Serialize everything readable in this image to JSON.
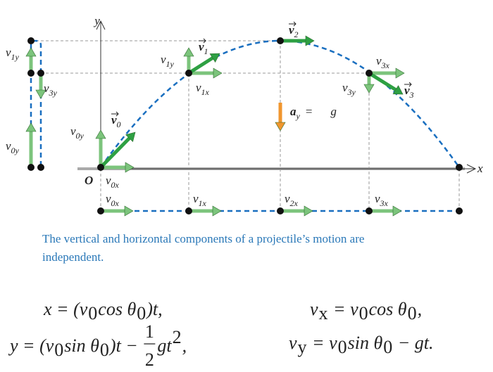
{
  "axes": {
    "y": "y",
    "x": "x",
    "origin": "O"
  },
  "labels": [
    {
      "symbol": "v",
      "sub": "0y"
    },
    {
      "symbol": "v",
      "sub": "1y"
    },
    {
      "symbol": "v",
      "sub": "3y"
    },
    {
      "symbol": "v",
      "sub": "0"
    },
    {
      "symbol": "v",
      "sub": "0y"
    },
    {
      "symbol": "v",
      "sub": "0x"
    },
    {
      "symbol": "v",
      "sub": "1y"
    },
    {
      "symbol": "v",
      "sub": "1"
    },
    {
      "symbol": "v",
      "sub": "1x"
    },
    {
      "symbol": "v",
      "sub": "2"
    },
    {
      "symbol": "v",
      "sub": "3x"
    },
    {
      "symbol": "v",
      "sub": "3y"
    },
    {
      "symbol": "v",
      "sub": "3"
    },
    {
      "symbol": "v",
      "sub": "0x"
    },
    {
      "symbol": "v",
      "sub": "1x"
    },
    {
      "symbol": "v",
      "sub": "2x"
    },
    {
      "symbol": "v",
      "sub": "3x"
    }
  ],
  "acceleration": {
    "symbol": "a",
    "sub": "y",
    "equals": "=",
    "value": "g"
  },
  "caption": [
    "The vertical and horizontal components of a projectile’s motion are",
    "independent."
  ],
  "equations": [
    [
      {
        "text": "x = (v"
      },
      {
        "sub": "0"
      },
      {
        "text": "cos θ"
      },
      {
        "sub": "0"
      },
      {
        "text": ")t,"
      }
    ],
    [
      {
        "text": "y = (v"
      },
      {
        "sub": "0"
      },
      {
        "text": "sin θ"
      },
      {
        "sub": "0"
      },
      {
        "text": ")t − "
      },
      {
        "num": "1",
        "den": "2"
      },
      {
        "text": "gt"
      },
      {
        "sup": "2"
      },
      {
        "text": ","
      }
    ],
    [
      {
        "text": "v"
      },
      {
        "sub": "x"
      },
      {
        "text": " = v"
      },
      {
        "sub": "0"
      },
      {
        "text": "cos θ"
      },
      {
        "sub": "0"
      },
      {
        "text": ","
      }
    ],
    [
      {
        "text": "v"
      },
      {
        "sub": "y"
      },
      {
        "text": " = v"
      },
      {
        "sub": "0"
      },
      {
        "text": "sin θ"
      },
      {
        "sub": "0"
      },
      {
        "text": " − gt."
      }
    ]
  ]
}
